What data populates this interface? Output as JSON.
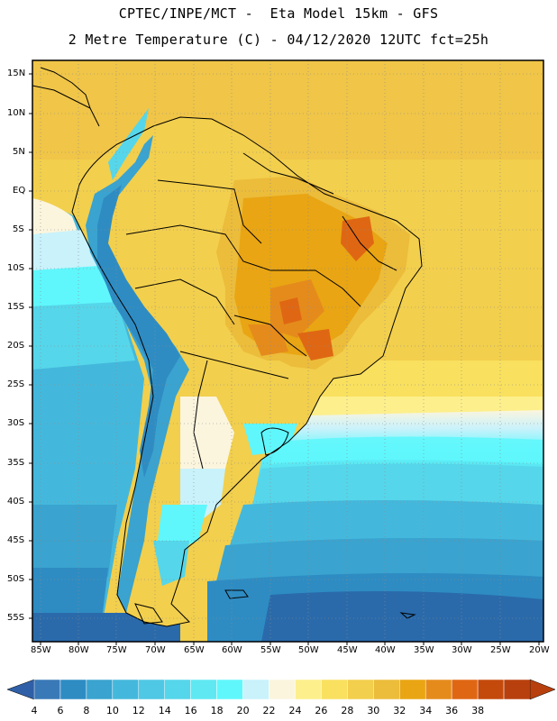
{
  "header": {
    "line1": "CPTEC/INPE/MCT -  Eta Model 15km - GFS",
    "line2": "2 Metre Temperature (C) - 04/12/2020 12UTC fct=25h"
  },
  "map": {
    "region": "South America",
    "lon_range": [
      -86,
      -20
    ],
    "lat_range": [
      -58,
      17
    ],
    "lat_ticks": [
      "15N",
      "10N",
      "5N",
      "EQ",
      "5S",
      "10S",
      "15S",
      "20S",
      "25S",
      "30S",
      "35S",
      "40S",
      "45S",
      "50S",
      "55S"
    ],
    "lon_ticks": [
      "85W",
      "80W",
      "75W",
      "70W",
      "65W",
      "60W",
      "55W",
      "50W",
      "45W",
      "40W",
      "35W",
      "30W",
      "25W",
      "20W"
    ]
  },
  "colorbar": {
    "labels": [
      "4",
      "6",
      "8",
      "10",
      "12",
      "14",
      "16",
      "18",
      "20",
      "22",
      "24",
      "26",
      "28",
      "30",
      "32",
      "34",
      "36",
      "38"
    ],
    "colors": [
      "#3a79b7",
      "#2e8cc3",
      "#3aa3cf",
      "#44b8dc",
      "#4ec8e4",
      "#56d6ea",
      "#5fe8f2",
      "#5ff7fc",
      "#c9f2fb",
      "#fbf5de",
      "#fdef8c",
      "#f9e05f",
      "#f2cf4d",
      "#ecbc3b",
      "#e9a513",
      "#e58b1c",
      "#df6713",
      "#c44a0b",
      "#b8400e"
    ],
    "under_color": "#2f5fa6",
    "over_color": "#b8400e"
  }
}
